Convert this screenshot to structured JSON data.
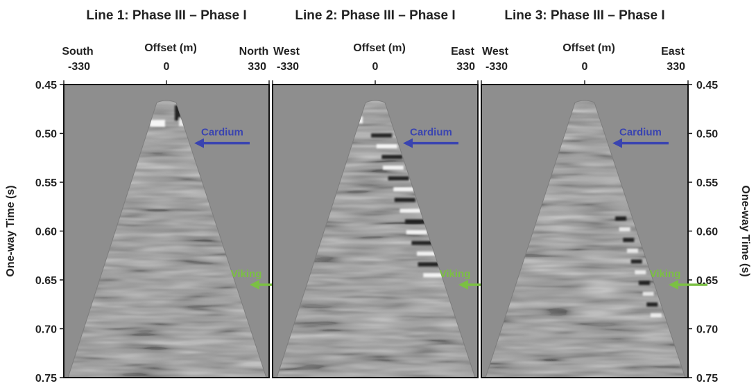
{
  "chart_data": {
    "type": "heatmap",
    "y_axis": {
      "label": "One-way Time (s)",
      "range": [
        0.45,
        0.75
      ],
      "ticks": [
        "0.45",
        "0.50",
        "0.55",
        "0.60",
        "0.65",
        "0.70",
        "0.75"
      ],
      "inverted": true
    },
    "panels": [
      {
        "title": "Line 1: Phase III – Phase I",
        "axis_label": "Offset (m)",
        "left_dir": "South",
        "right_dir": "North",
        "x_ticks": [
          "-330",
          "0",
          "330"
        ],
        "x_range": [
          -330,
          330
        ],
        "annotations": [
          {
            "text": "Cardium",
            "color": "#3a44b0",
            "time": 0.51
          },
          {
            "text": "Viking",
            "color": "#7bc043",
            "time": 0.655
          }
        ]
      },
      {
        "title": "Line 2: Phase III – Phase I",
        "axis_label": "Offset (m)",
        "left_dir": "West",
        "right_dir": "East",
        "x_ticks": [
          "-330",
          "0",
          "330"
        ],
        "x_range": [
          -330,
          330
        ],
        "annotations": [
          {
            "text": "Cardium",
            "color": "#3a44b0",
            "time": 0.51
          },
          {
            "text": "Viking",
            "color": "#7bc043",
            "time": 0.655
          }
        ]
      },
      {
        "title": "Line 3: Phase III – Phase I",
        "axis_label": "Offset (m)",
        "left_dir": "West",
        "right_dir": "East",
        "x_ticks": [
          "-330",
          "0",
          "330"
        ],
        "x_range": [
          -330,
          330
        ],
        "annotations": [
          {
            "text": "Cardium",
            "color": "#3a44b0",
            "time": 0.51
          },
          {
            "text": "Viking",
            "color": "#7bc043",
            "time": 0.655
          }
        ]
      }
    ],
    "background_color": "#8e8e8e"
  }
}
